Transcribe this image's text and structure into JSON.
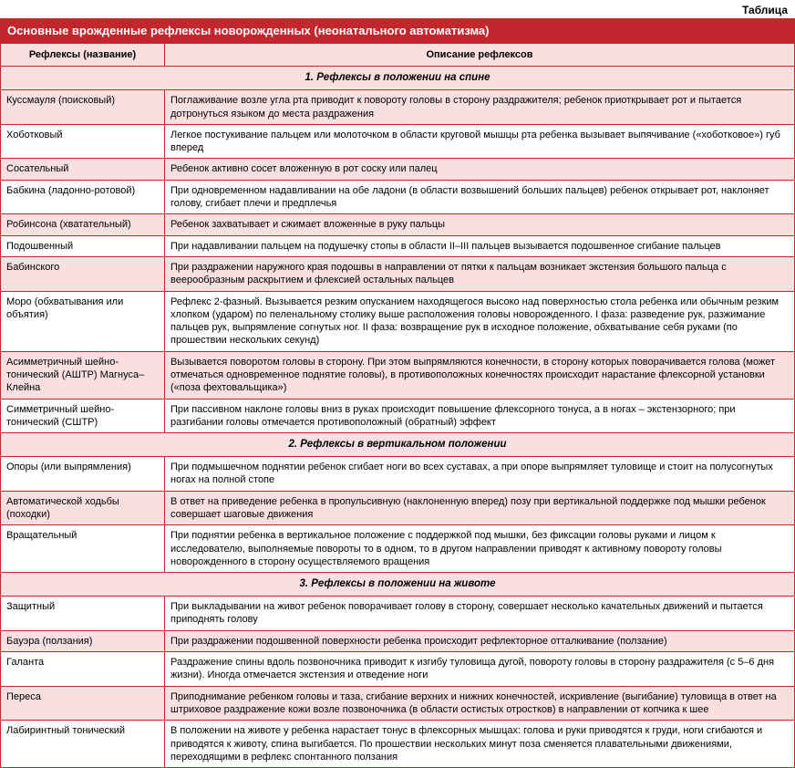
{
  "tableLabel": "Таблица",
  "title": "Основные врожденные рефлексы новорожденных (неонатального автоматизма)",
  "columns": {
    "name": "Рефлексы (название)",
    "desc": "Описание рефлексов"
  },
  "colors": {
    "headerBg": "#c1272d",
    "headerText": "#ffffff",
    "rowAlt": "#f8e0e0",
    "border": "#c1272d",
    "text": "#000000"
  },
  "fontSizes": {
    "label": 12,
    "title": 13,
    "cell": 11,
    "section": 11.5
  },
  "sections": [
    {
      "heading": "1. Рефлексы в положении на спине",
      "rows": [
        {
          "name": "Куссмауля (поисковый)",
          "desc": "Поглаживание возле угла рта приводит к повороту головы в сторону раздражителя; ребенок приоткрывает рот и пытается дотронуться языком до места раздражения"
        },
        {
          "name": "Хоботковый",
          "desc": "Легкое постукивание пальцем или молоточком в области круговой мышцы рта ребенка вызывает выпячивание («хоботковое») губ вперед"
        },
        {
          "name": "Сосательный",
          "desc": "Ребенок активно сосет вложенную в рот соску или палец"
        },
        {
          "name": "Бабкина (ладонно-ротовой)",
          "desc": "При одновременном надавливании на обе ладони (в области возвышений больших пальцев) ребенок открывает рот, наклоняет голову, сгибает плечи и предплечья"
        },
        {
          "name": "Робинсона (хватательный)",
          "desc": "Ребенок захватывает и сжимает вложенные в руку пальцы"
        },
        {
          "name": "Подошвенный",
          "desc": "При надавливании пальцем на подушечку стопы в области II–III пальцев вызывается подошвенное сгибание пальцев"
        },
        {
          "name": "Бабинского",
          "desc": "При раздражении наружного края подошвы в направлении от пятки к пальцам возникает экстензия большого пальца с веерообразным раскрытием и флексией остальных пальцев"
        },
        {
          "name": "Моро (обхватывания или объятия)",
          "desc": "Рефлекс 2-фазный. Вызывается резким опусканием находящегося высоко над поверхностью стола ребенка или обычным резким хлопком (ударом) по пеленальному столику выше расположения головы новорожденного. I фаза: разведение рук, разжимание пальцев рук, выпрямление согнутых ног. II фаза: возвращение рук в исходное положение, обхватывание себя руками (по прошествии нескольких секунд)"
        },
        {
          "name": "Асимметричный шейно-тонический (АШТР) Магнуса–Клейна",
          "desc": "Вызывается поворотом головы в сторону. При этом выпрямляются конечности, в сторону которых поворачивается голова (может отмечаться одновременное поднятие головы), в противоположных конечностях происходит нарастание флексорной установки («поза фехтовальщика»)"
        },
        {
          "name": "Симметричный шейно-тонический (СШТР)",
          "desc": "При пассивном наклоне головы вниз в руках происходит повышение флексорного тонуса, а в ногах – экстензорного; при разгибании головы отмечается противоположный (обратный) эффект"
        }
      ]
    },
    {
      "heading": "2. Рефлексы в вертикальном положении",
      "rows": [
        {
          "name": "Опоры (или выпрямления)",
          "desc": "При подмышечном поднятии ребенок сгибает ноги во всех суставах, а при опоре выпрямляет туловище и стоит на полусогнутых ногах на полной стопе"
        },
        {
          "name": "Автоматической ходьбы (походки)",
          "desc": "В ответ на приведение ребенка в пропульсивную (наклоненную вперед) позу при вертикальной поддержке под мышки ребенок совершает шаговые движения"
        },
        {
          "name": "Вращательный",
          "desc": "При поднятии ребенка в вертикальное положение с поддержкой под мышки, без фиксации головы руками и лицом к исследователю, выполняемые повороты то в одном, то в другом направлении приводят к активному повороту головы новорожденного в сторону осуществляемого вращения"
        }
      ]
    },
    {
      "heading": "3. Рефлексы в положении на животе",
      "rows": [
        {
          "name": "Защитный",
          "desc": "При выкладывании на живот ребенок поворачивает голову в сторону, совершает несколько качательных движений и пытается приподнять голову"
        },
        {
          "name": "Бауэра (ползания)",
          "desc": "При раздражении подошвенной поверхности ребенка происходит рефлекторное отталкивание (ползание)"
        },
        {
          "name": "Галанта",
          "desc": "Раздражение спины вдоль позвоночника приводит к изгибу туловища дугой, повороту головы в сторону раздражителя (с 5–6 дня жизни). Иногда отмечается экстензия и отведение ноги"
        },
        {
          "name": "Переса",
          "desc": "Приподнимание ребенком головы и таза, сгибание верхних и нижних конечностей, искривление (выгибание) туловища в ответ на штриховое раздражение кожи возле позвоночника (в области остистых отростков) в направлении от копчика к шее"
        },
        {
          "name": "Лабиринтный тонический",
          "desc": "В положении на животе у ребенка нарастает тонус в флексорных мышцах: голова и руки приводятся к груди, ноги сгибаются и приводятся к животу, спина выгибается. По прошествии нескольких минут поза сменяется плавательными движениями, переходящими в рефлекс спонтанного ползания"
        }
      ]
    }
  ]
}
